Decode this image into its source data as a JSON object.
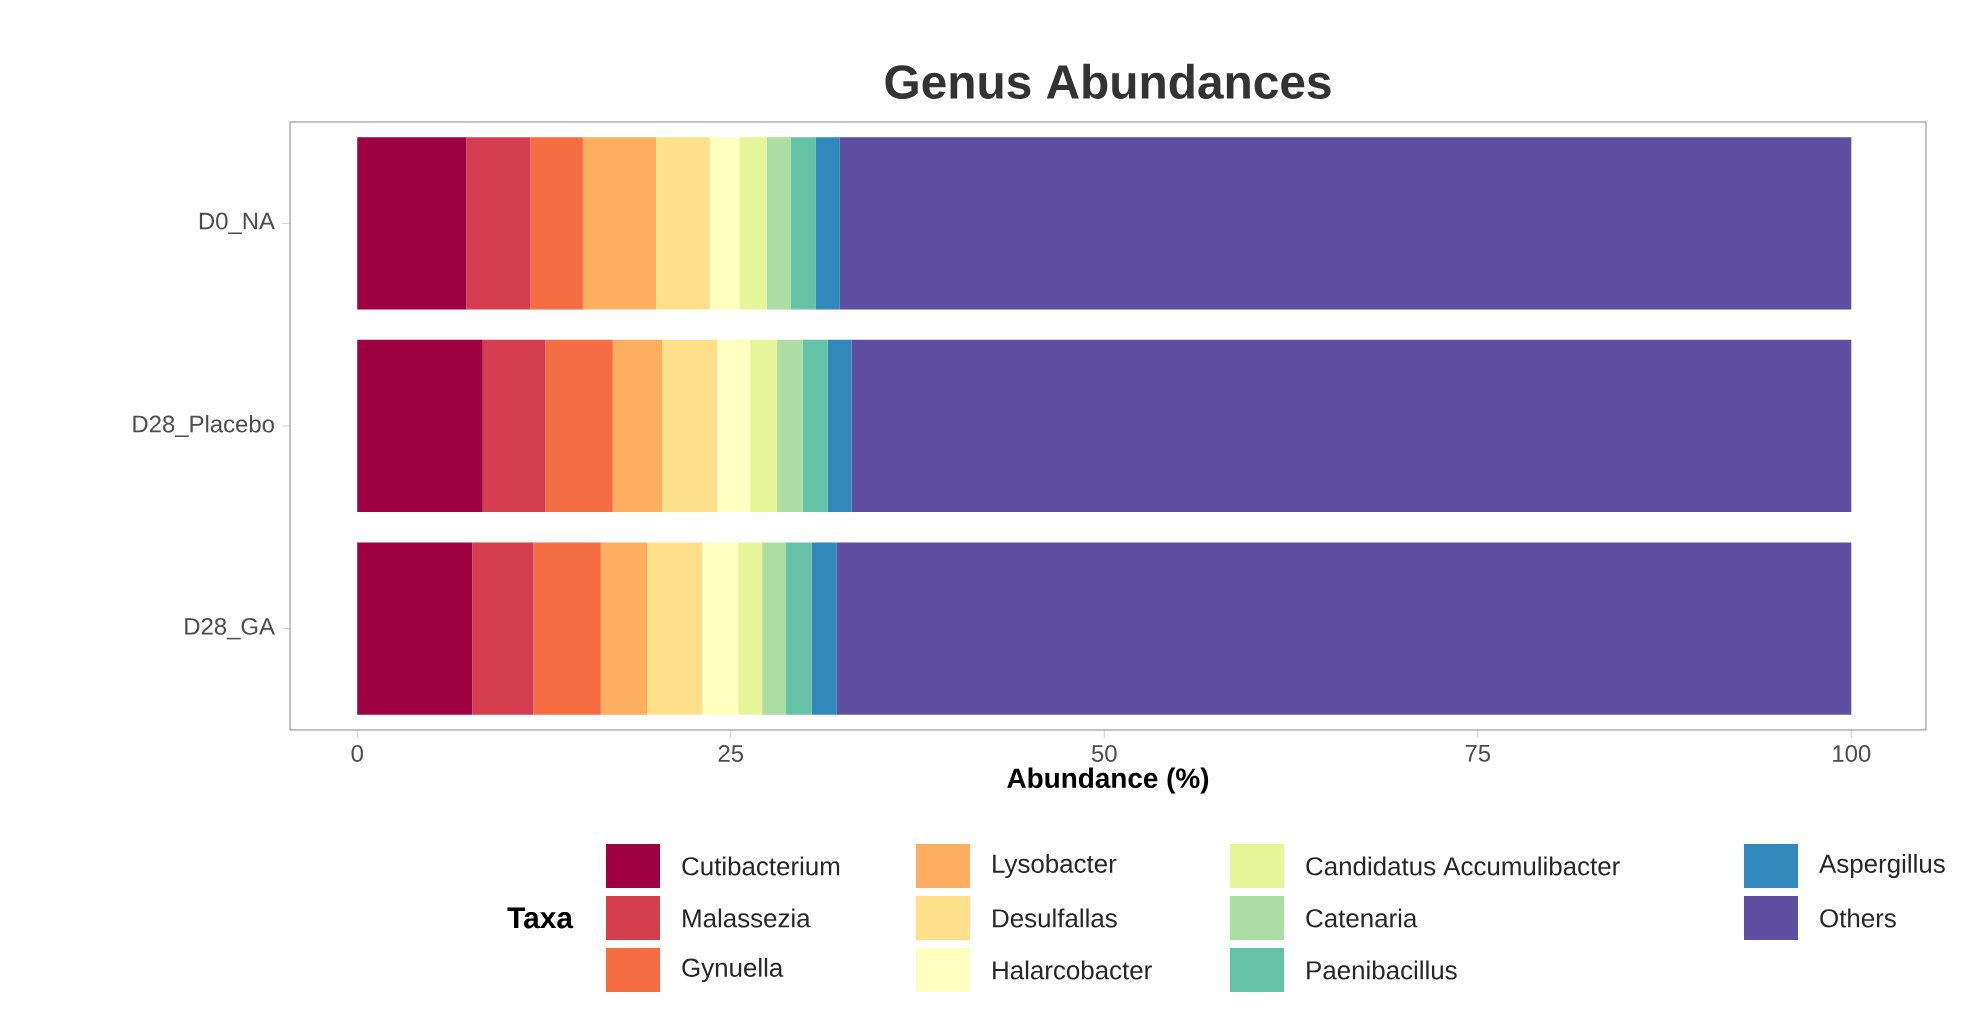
{
  "chart_data": {
    "type": "bar",
    "orientation": "horizontal",
    "stacked": true,
    "title": "Genus Abundances",
    "xlabel": "Abundance (%)",
    "legend_title": "Taxa",
    "legend": "bottom",
    "grid": false,
    "categories": [
      "D0_NA",
      "D28_Placebo",
      "D28_GA"
    ],
    "xlim": [
      -4.5,
      105
    ],
    "xticks": [
      0,
      25,
      50,
      75,
      100
    ],
    "series": [
      {
        "name": "Cutibacterium",
        "color": "#9e0142",
        "values": [
          7.3,
          8.4,
          7.7
        ]
      },
      {
        "name": "Malassezia",
        "color": "#d53e4f",
        "values": [
          4.3,
          4.2,
          4.1
        ]
      },
      {
        "name": "Gynuella",
        "color": "#f46d43",
        "values": [
          3.5,
          4.5,
          4.5
        ]
      },
      {
        "name": "Lysobacter",
        "color": "#fdae61",
        "values": [
          4.9,
          3.3,
          3.1
        ]
      },
      {
        "name": "Desulfallas",
        "color": "#fee08b",
        "values": [
          3.6,
          3.7,
          3.7
        ]
      },
      {
        "name": "Halarcobacter",
        "color": "#ffffbf",
        "values": [
          2.0,
          2.2,
          2.4
        ]
      },
      {
        "name": "Candidatus Accumulibacter",
        "color": "#e6f598",
        "values": [
          1.8,
          1.8,
          1.6
        ]
      },
      {
        "name": "Catenaria",
        "color": "#abdda4",
        "values": [
          1.6,
          1.7,
          1.6
        ]
      },
      {
        "name": "Paenibacillus",
        "color": "#66c2a5",
        "values": [
          1.7,
          1.7,
          1.7
        ]
      },
      {
        "name": "Aspergillus",
        "color": "#3288bd",
        "values": [
          1.6,
          1.6,
          1.7
        ]
      },
      {
        "name": "Others",
        "color": "#5e4fa2",
        "values": [
          67.7,
          66.9,
          67.9
        ]
      }
    ]
  }
}
